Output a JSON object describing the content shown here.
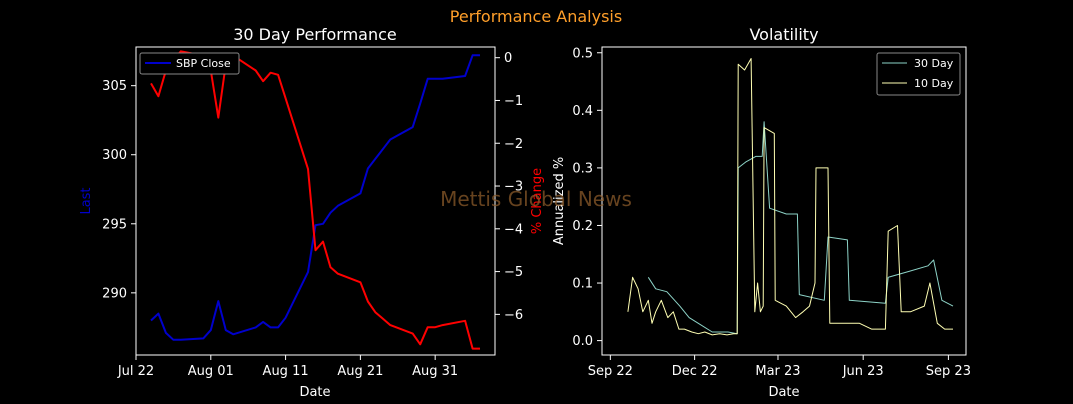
{
  "figure": {
    "suptitle": "Performance Analysis",
    "watermark": "Mettis Global News"
  },
  "colors": {
    "background": "#000000",
    "foreground": "#ffffff",
    "suptitle": "#ff9f2a",
    "watermark": "#8a5a2a",
    "sbp_close": "#0000cc",
    "pct_change": "#ff0000",
    "vol_30": "#8dd3c7",
    "vol_10": "#ffffb3"
  },
  "chart_data": [
    {
      "type": "line",
      "title": "30 Day Performance",
      "xlabel": "Date",
      "ylabel_left": "Last",
      "ylabel_right": "% Change",
      "x_ticks": [
        "Jul 22",
        "Aug 01",
        "Aug 11",
        "Aug 21",
        "Aug 31"
      ],
      "x_range": [
        "2023-07-22",
        "2023-09-08"
      ],
      "ylim_left": [
        285.5,
        307.8
      ],
      "yticks_left": [
        290,
        295,
        300,
        305
      ],
      "ylim_right": [
        -6.95,
        0.25
      ],
      "yticks_right": [
        0,
        -1,
        -2,
        -3,
        -4,
        -5,
        -6
      ],
      "legend": {
        "position": "top-left",
        "entries": [
          "SBP Close"
        ]
      },
      "grid": false,
      "series": [
        {
          "name": "SBP Close",
          "axis": "left",
          "x": [
            "2023-07-24",
            "2023-07-25",
            "2023-07-26",
            "2023-07-27",
            "2023-07-28",
            "2023-07-31",
            "2023-08-01",
            "2023-08-02",
            "2023-08-03",
            "2023-08-04",
            "2023-08-07",
            "2023-08-08",
            "2023-08-09",
            "2023-08-10",
            "2023-08-11",
            "2023-08-14",
            "2023-08-15",
            "2023-08-16",
            "2023-08-17",
            "2023-08-18",
            "2023-08-21",
            "2023-08-22",
            "2023-08-23",
            "2023-08-24",
            "2023-08-25",
            "2023-08-28",
            "2023-08-29",
            "2023-08-30",
            "2023-08-31",
            "2023-09-01",
            "2023-09-04",
            "2023-09-05",
            "2023-09-06"
          ],
          "values": [
            288.0,
            288.5,
            287.1,
            286.6,
            286.6,
            286.7,
            287.3,
            289.4,
            287.3,
            287.0,
            287.5,
            287.9,
            287.5,
            287.5,
            288.2,
            291.5,
            294.9,
            295.0,
            295.8,
            296.3,
            297.2,
            299.0,
            299.7,
            300.4,
            301.1,
            302.0,
            303.7,
            305.5,
            305.5,
            305.5,
            305.7,
            307.2,
            307.2
          ]
        },
        {
          "name": "% Change",
          "axis": "right",
          "x": [
            "2023-07-24",
            "2023-07-25",
            "2023-07-26",
            "2023-07-27",
            "2023-07-28",
            "2023-07-31",
            "2023-08-01",
            "2023-08-02",
            "2023-08-03",
            "2023-08-04",
            "2023-08-07",
            "2023-08-08",
            "2023-08-09",
            "2023-08-10",
            "2023-08-11",
            "2023-08-14",
            "2023-08-15",
            "2023-08-16",
            "2023-08-17",
            "2023-08-18",
            "2023-08-21",
            "2023-08-22",
            "2023-08-23",
            "2023-08-24",
            "2023-08-25",
            "2023-08-28",
            "2023-08-29",
            "2023-08-30",
            "2023-08-31",
            "2023-09-01",
            "2023-09-04",
            "2023-09-05",
            "2023-09-06"
          ],
          "values": [
            -0.6,
            -0.9,
            -0.3,
            -0.05,
            0.15,
            0.05,
            -0.3,
            -1.4,
            -0.15,
            0.05,
            -0.3,
            -0.55,
            -0.35,
            -0.4,
            -0.95,
            -2.6,
            -4.5,
            -4.3,
            -4.9,
            -5.05,
            -5.25,
            -5.7,
            -5.95,
            -6.1,
            -6.25,
            -6.45,
            -6.7,
            -6.3,
            -6.3,
            -6.25,
            -6.15,
            -6.8,
            -6.8
          ]
        }
      ]
    },
    {
      "type": "line",
      "title": "Volatility",
      "xlabel": "Date",
      "ylabel": "Annualized %",
      "x_ticks": [
        "Sep 22",
        "Dec 22",
        "Mar 23",
        "Jun 23",
        "Sep 23"
      ],
      "x_range": [
        "2022-08-23",
        "2023-09-20"
      ],
      "ylim": [
        -0.025,
        0.51
      ],
      "yticks": [
        0.0,
        0.1,
        0.2,
        0.3,
        0.4,
        0.5
      ],
      "legend": {
        "position": "top-right",
        "entries": [
          "30 Day",
          "10 Day"
        ]
      },
      "grid": false,
      "series": [
        {
          "name": "30 Day",
          "x": [
            "2022-10-12",
            "2022-10-20",
            "2022-11-01",
            "2022-11-15",
            "2022-11-25",
            "2022-12-05",
            "2022-12-20",
            "2023-01-06",
            "2023-01-16",
            "2023-01-17",
            "2023-01-25",
            "2023-02-05",
            "2023-02-12",
            "2023-02-14",
            "2023-02-20",
            "2023-03-10",
            "2023-03-22",
            "2023-03-24",
            "2023-04-20",
            "2023-04-24",
            "2023-05-15",
            "2023-05-17",
            "2023-06-25",
            "2023-06-28",
            "2023-07-20",
            "2023-08-10",
            "2023-08-16",
            "2023-08-25",
            "2023-09-06"
          ],
          "values": [
            0.11,
            0.09,
            0.085,
            0.06,
            0.04,
            0.03,
            0.015,
            0.015,
            0.012,
            0.3,
            0.31,
            0.32,
            0.32,
            0.38,
            0.23,
            0.22,
            0.22,
            0.08,
            0.07,
            0.18,
            0.175,
            0.07,
            0.065,
            0.11,
            0.12,
            0.13,
            0.14,
            0.07,
            0.06
          ]
        },
        {
          "name": "10 Day",
          "x": [
            "2022-09-20",
            "2022-09-25",
            "2022-10-01",
            "2022-10-06",
            "2022-10-12",
            "2022-10-16",
            "2022-10-20",
            "2022-10-26",
            "2022-11-02",
            "2022-11-08",
            "2022-11-14",
            "2022-11-20",
            "2022-11-28",
            "2022-12-05",
            "2022-12-12",
            "2022-12-20",
            "2022-12-28",
            "2023-01-05",
            "2023-01-12",
            "2023-01-16",
            "2023-01-17",
            "2023-01-24",
            "2023-01-31",
            "2023-02-04",
            "2023-02-07",
            "2023-02-10",
            "2023-02-13",
            "2023-02-14",
            "2023-02-25",
            "2023-02-26",
            "2023-03-10",
            "2023-03-20",
            "2023-03-28",
            "2023-04-04",
            "2023-04-10",
            "2023-04-11",
            "2023-04-24",
            "2023-04-26",
            "2023-05-06",
            "2023-05-18",
            "2023-05-28",
            "2023-06-10",
            "2023-06-25",
            "2023-06-28",
            "2023-07-08",
            "2023-07-12",
            "2023-07-22",
            "2023-08-06",
            "2023-08-12",
            "2023-08-20",
            "2023-08-28",
            "2023-09-06"
          ],
          "values": [
            0.05,
            0.11,
            0.09,
            0.05,
            0.07,
            0.03,
            0.05,
            0.07,
            0.04,
            0.05,
            0.02,
            0.02,
            0.015,
            0.012,
            0.015,
            0.01,
            0.012,
            0.01,
            0.012,
            0.012,
            0.48,
            0.47,
            0.49,
            0.05,
            0.1,
            0.05,
            0.06,
            0.37,
            0.36,
            0.07,
            0.06,
            0.04,
            0.05,
            0.06,
            0.1,
            0.3,
            0.3,
            0.03,
            0.03,
            0.03,
            0.03,
            0.02,
            0.02,
            0.19,
            0.2,
            0.05,
            0.05,
            0.06,
            0.1,
            0.03,
            0.02,
            0.02
          ]
        }
      ]
    }
  ]
}
